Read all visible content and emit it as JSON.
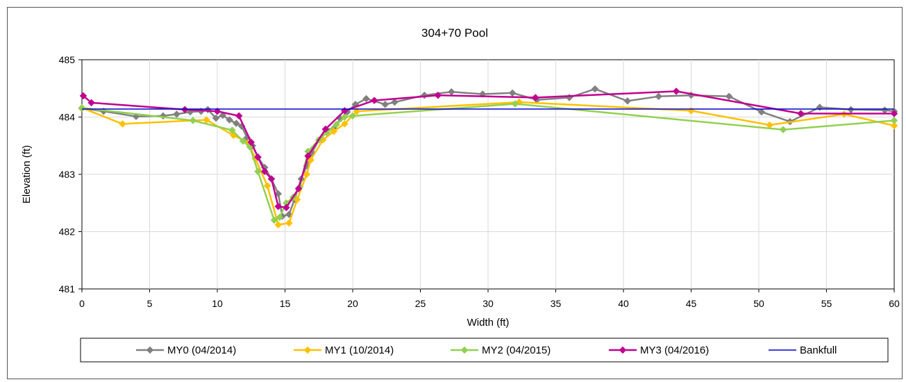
{
  "chart_data": {
    "type": "line",
    "title": "304+70 Pool",
    "xlabel": "Width (ft)",
    "ylabel": "Elevation (ft)",
    "xlim": [
      0,
      60
    ],
    "ylim": [
      481,
      485
    ],
    "xticks": [
      0,
      5,
      10,
      15,
      20,
      25,
      30,
      35,
      40,
      45,
      50,
      55,
      60
    ],
    "yticks": [
      481,
      482,
      483,
      484,
      485
    ],
    "grid": true,
    "legend_position": "bottom",
    "series": [
      {
        "name": "MY0 (04/2014)",
        "color": "#808080",
        "marker": "diamond",
        "points": [
          [
            0,
            484.15
          ],
          [
            1.6,
            484.1
          ],
          [
            4.0,
            484.01
          ],
          [
            6.0,
            484.02
          ],
          [
            7.0,
            484.05
          ],
          [
            8.0,
            484.09
          ],
          [
            8.8,
            484.1
          ],
          [
            9.3,
            484.13
          ],
          [
            9.9,
            483.98
          ],
          [
            10.4,
            484.03
          ],
          [
            10.9,
            483.95
          ],
          [
            11.4,
            483.89
          ],
          [
            11.8,
            483.84
          ],
          [
            12.2,
            483.64
          ],
          [
            12.6,
            483.5
          ],
          [
            13.0,
            483.3
          ],
          [
            13.5,
            483.12
          ],
          [
            14.0,
            482.92
          ],
          [
            14.5,
            482.66
          ],
          [
            14.8,
            482.27
          ],
          [
            15.3,
            482.3
          ],
          [
            15.7,
            482.56
          ],
          [
            16.2,
            482.92
          ],
          [
            16.6,
            483.15
          ],
          [
            17.0,
            483.38
          ],
          [
            17.5,
            483.6
          ],
          [
            18.0,
            483.78
          ],
          [
            18.6,
            483.8
          ],
          [
            19.1,
            483.97
          ],
          [
            19.6,
            484.09
          ],
          [
            20.2,
            484.22
          ],
          [
            21.0,
            484.32
          ],
          [
            22.4,
            484.22
          ],
          [
            23.1,
            484.26
          ],
          [
            25.3,
            484.38
          ],
          [
            27.3,
            484.44
          ],
          [
            29.6,
            484.4
          ],
          [
            31.8,
            484.42
          ],
          [
            33.6,
            484.3
          ],
          [
            36.0,
            484.34
          ],
          [
            37.9,
            484.49
          ],
          [
            40.3,
            484.28
          ],
          [
            42.6,
            484.36
          ],
          [
            45.0,
            484.38
          ],
          [
            47.8,
            484.36
          ],
          [
            50.2,
            484.09
          ],
          [
            52.3,
            483.92
          ],
          [
            54.5,
            484.17
          ],
          [
            56.8,
            484.13
          ],
          [
            59.3,
            484.12
          ],
          [
            60.0,
            484.1
          ]
        ]
      },
      {
        "name": "MY1 (10/2014)",
        "color": "#FFC000",
        "marker": "diamond",
        "points": [
          [
            0,
            484.16
          ],
          [
            3.0,
            483.88
          ],
          [
            9.2,
            483.95
          ],
          [
            11.2,
            483.68
          ],
          [
            12.3,
            483.55
          ],
          [
            12.8,
            483.28
          ],
          [
            13.7,
            482.8
          ],
          [
            14.5,
            482.12
          ],
          [
            15.3,
            482.15
          ],
          [
            15.9,
            482.56
          ],
          [
            16.6,
            483.0
          ],
          [
            16.9,
            483.25
          ],
          [
            17.8,
            483.6
          ],
          [
            18.6,
            483.75
          ],
          [
            19.4,
            483.88
          ],
          [
            20.3,
            484.1
          ],
          [
            32.3,
            484.26
          ],
          [
            45.0,
            484.11
          ],
          [
            50.8,
            483.86
          ],
          [
            56.3,
            484.05
          ],
          [
            60.0,
            483.85
          ]
        ]
      },
      {
        "name": "MY2 (04/2015)",
        "color": "#92D050",
        "marker": "diamond",
        "points": [
          [
            0,
            484.16
          ],
          [
            8.2,
            483.94
          ],
          [
            11.1,
            483.77
          ],
          [
            11.9,
            483.58
          ],
          [
            12.4,
            483.48
          ],
          [
            13.0,
            483.05
          ],
          [
            14.2,
            482.2
          ],
          [
            14.6,
            482.25
          ],
          [
            15.1,
            482.5
          ],
          [
            15.6,
            482.6
          ],
          [
            16.1,
            482.78
          ],
          [
            16.7,
            483.4
          ],
          [
            17.5,
            483.6
          ],
          [
            18.1,
            483.73
          ],
          [
            18.8,
            483.87
          ],
          [
            19.4,
            484.0
          ],
          [
            20.0,
            484.02
          ],
          [
            32.0,
            484.23
          ],
          [
            51.8,
            483.78
          ],
          [
            60.0,
            483.94
          ]
        ]
      },
      {
        "name": "MY3 (04/2016)",
        "color": "#C00090",
        "marker": "diamond",
        "points": [
          [
            0.1,
            484.37
          ],
          [
            0.7,
            484.25
          ],
          [
            7.6,
            484.13
          ],
          [
            10.0,
            484.1
          ],
          [
            11.6,
            484.02
          ],
          [
            12.5,
            483.56
          ],
          [
            13.0,
            483.3
          ],
          [
            13.5,
            483.05
          ],
          [
            14.0,
            482.92
          ],
          [
            14.5,
            482.44
          ],
          [
            15.1,
            482.42
          ],
          [
            16.0,
            482.75
          ],
          [
            16.7,
            483.32
          ],
          [
            18.0,
            483.79
          ],
          [
            19.4,
            484.11
          ],
          [
            21.6,
            484.29
          ],
          [
            26.3,
            484.38
          ],
          [
            33.5,
            484.34
          ],
          [
            43.9,
            484.45
          ],
          [
            53.1,
            484.06
          ],
          [
            60.0,
            484.06
          ]
        ]
      },
      {
        "name": "Bankfull",
        "color": "#0000CC",
        "marker": "none",
        "points": [
          [
            0,
            484.14
          ],
          [
            60,
            484.14
          ]
        ]
      }
    ]
  }
}
